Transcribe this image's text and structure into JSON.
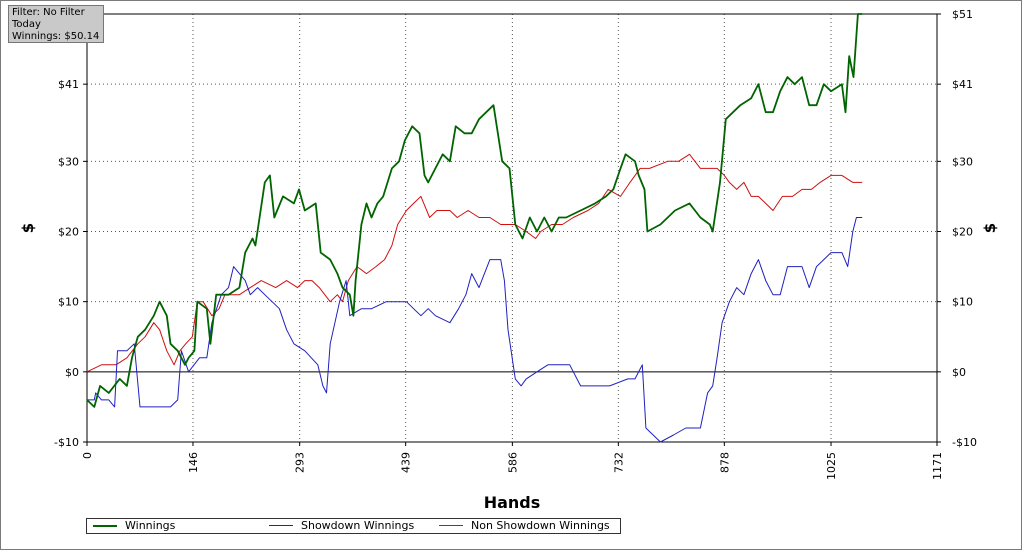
{
  "filter": {
    "line1": "Filter: No Filter",
    "line2": "Today",
    "line3": "Winnings: $50.14"
  },
  "chart_data": {
    "type": "line",
    "xlabel": "Hands",
    "ylabel": "$",
    "ylabel_right": "$",
    "xlim": [
      0,
      1171
    ],
    "ylim": [
      -10,
      51
    ],
    "x_ticks": [
      0,
      146,
      293,
      439,
      586,
      732,
      878,
      1025,
      1171
    ],
    "y_ticks": [
      {
        "value": -10,
        "label": "-$10"
      },
      {
        "value": 0,
        "label": "$0"
      },
      {
        "value": 10,
        "label": "$10"
      },
      {
        "value": 20,
        "label": "$20"
      },
      {
        "value": 30,
        "label": "$30"
      },
      {
        "value": 41,
        "label": "$41"
      },
      {
        "value": 51,
        "label": "$51"
      }
    ],
    "grid": true,
    "legend_position": "bottom-left",
    "series": [
      {
        "name": "Winnings",
        "color": "#006400",
        "points": [
          [
            0,
            -4
          ],
          [
            10,
            -5
          ],
          [
            18,
            -2
          ],
          [
            30,
            -3
          ],
          [
            45,
            -1
          ],
          [
            55,
            -2
          ],
          [
            62,
            2
          ],
          [
            70,
            5
          ],
          [
            80,
            6
          ],
          [
            92,
            8
          ],
          [
            100,
            10
          ],
          [
            110,
            8
          ],
          [
            115,
            4
          ],
          [
            125,
            3
          ],
          [
            135,
            1
          ],
          [
            140,
            2
          ],
          [
            148,
            3
          ],
          [
            152,
            10
          ],
          [
            165,
            9
          ],
          [
            170,
            4
          ],
          [
            178,
            11
          ],
          [
            195,
            11
          ],
          [
            210,
            12
          ],
          [
            218,
            17
          ],
          [
            228,
            19
          ],
          [
            232,
            18
          ],
          [
            245,
            27
          ],
          [
            252,
            28
          ],
          [
            258,
            22
          ],
          [
            270,
            25
          ],
          [
            285,
            24
          ],
          [
            292,
            26
          ],
          [
            300,
            23
          ],
          [
            315,
            24
          ],
          [
            322,
            17
          ],
          [
            335,
            16
          ],
          [
            345,
            14
          ],
          [
            352,
            12
          ],
          [
            362,
            11
          ],
          [
            367,
            8
          ],
          [
            370,
            13
          ],
          [
            378,
            21
          ],
          [
            385,
            24
          ],
          [
            392,
            22
          ],
          [
            400,
            24
          ],
          [
            408,
            25
          ],
          [
            420,
            29
          ],
          [
            430,
            30
          ],
          [
            438,
            33
          ],
          [
            448,
            35
          ],
          [
            458,
            34
          ],
          [
            465,
            28
          ],
          [
            470,
            27
          ],
          [
            480,
            29
          ],
          [
            490,
            31
          ],
          [
            500,
            30
          ],
          [
            508,
            35
          ],
          [
            520,
            34
          ],
          [
            530,
            34
          ],
          [
            540,
            36
          ],
          [
            550,
            37
          ],
          [
            560,
            38
          ],
          [
            572,
            30
          ],
          [
            582,
            29
          ],
          [
            590,
            21
          ],
          [
            600,
            19
          ],
          [
            610,
            22
          ],
          [
            620,
            20
          ],
          [
            630,
            22
          ],
          [
            640,
            20
          ],
          [
            650,
            22
          ],
          [
            660,
            22
          ],
          [
            680,
            23
          ],
          [
            700,
            24
          ],
          [
            715,
            25
          ],
          [
            725,
            26
          ],
          [
            735,
            29
          ],
          [
            742,
            31
          ],
          [
            755,
            30
          ],
          [
            760,
            28
          ],
          [
            768,
            26
          ],
          [
            772,
            20
          ],
          [
            790,
            21
          ],
          [
            810,
            23
          ],
          [
            830,
            24
          ],
          [
            845,
            22
          ],
          [
            858,
            21
          ],
          [
            862,
            20
          ],
          [
            872,
            27
          ],
          [
            880,
            36
          ],
          [
            900,
            38
          ],
          [
            915,
            39
          ],
          [
            925,
            41
          ],
          [
            935,
            37
          ],
          [
            945,
            37
          ],
          [
            955,
            40
          ],
          [
            965,
            42
          ],
          [
            975,
            41
          ],
          [
            985,
            42
          ],
          [
            995,
            38
          ],
          [
            1005,
            38
          ],
          [
            1015,
            41
          ],
          [
            1025,
            40
          ],
          [
            1040,
            41
          ],
          [
            1045,
            37
          ],
          [
            1050,
            45
          ],
          [
            1056,
            42
          ],
          [
            1062,
            51
          ],
          [
            1068,
            51
          ]
        ]
      },
      {
        "name": "Showdown Winnings",
        "color": "#2020c0",
        "points": [
          [
            0,
            -4
          ],
          [
            10,
            -4
          ],
          [
            12,
            -3
          ],
          [
            20,
            -4
          ],
          [
            30,
            -4
          ],
          [
            38,
            -5
          ],
          [
            42,
            3
          ],
          [
            55,
            3
          ],
          [
            65,
            4
          ],
          [
            73,
            -5
          ],
          [
            88,
            -5
          ],
          [
            100,
            -5
          ],
          [
            115,
            -5
          ],
          [
            125,
            -4
          ],
          [
            130,
            3
          ],
          [
            140,
            0
          ],
          [
            155,
            2
          ],
          [
            165,
            2
          ],
          [
            172,
            7
          ],
          [
            185,
            11
          ],
          [
            195,
            12
          ],
          [
            202,
            15
          ],
          [
            218,
            13
          ],
          [
            225,
            11
          ],
          [
            235,
            12
          ],
          [
            245,
            11
          ],
          [
            255,
            10
          ],
          [
            265,
            9
          ],
          [
            275,
            6
          ],
          [
            285,
            4
          ],
          [
            300,
            3
          ],
          [
            318,
            1
          ],
          [
            325,
            -2
          ],
          [
            330,
            -3
          ],
          [
            335,
            4
          ],
          [
            348,
            10
          ],
          [
            357,
            13
          ],
          [
            362,
            8
          ],
          [
            378,
            9
          ],
          [
            392,
            9
          ],
          [
            412,
            10
          ],
          [
            440,
            10
          ],
          [
            450,
            9
          ],
          [
            460,
            8
          ],
          [
            470,
            9
          ],
          [
            480,
            8
          ],
          [
            500,
            7
          ],
          [
            512,
            9
          ],
          [
            522,
            11
          ],
          [
            530,
            14
          ],
          [
            540,
            12
          ],
          [
            555,
            16
          ],
          [
            570,
            16
          ],
          [
            575,
            13
          ],
          [
            580,
            6
          ],
          [
            590,
            -1
          ],
          [
            598,
            -2
          ],
          [
            605,
            -1
          ],
          [
            620,
            0
          ],
          [
            635,
            1
          ],
          [
            650,
            1
          ],
          [
            665,
            1
          ],
          [
            680,
            -2
          ],
          [
            700,
            -2
          ],
          [
            720,
            -2
          ],
          [
            745,
            -1
          ],
          [
            755,
            -1
          ],
          [
            765,
            1
          ],
          [
            770,
            -8
          ],
          [
            790,
            -10
          ],
          [
            808,
            -9
          ],
          [
            825,
            -8
          ],
          [
            845,
            -8
          ],
          [
            855,
            -3
          ],
          [
            862,
            -2
          ],
          [
            868,
            2
          ],
          [
            875,
            7
          ],
          [
            885,
            10
          ],
          [
            895,
            12
          ],
          [
            905,
            11
          ],
          [
            915,
            14
          ],
          [
            925,
            16
          ],
          [
            935,
            13
          ],
          [
            945,
            11
          ],
          [
            955,
            11
          ],
          [
            965,
            15
          ],
          [
            985,
            15
          ],
          [
            995,
            12
          ],
          [
            1005,
            15
          ],
          [
            1015,
            16
          ],
          [
            1025,
            17
          ],
          [
            1040,
            17
          ],
          [
            1048,
            15
          ],
          [
            1055,
            20
          ],
          [
            1060,
            22
          ],
          [
            1068,
            22
          ]
        ]
      },
      {
        "name": "Non Showdown Winnings",
        "color": "#d01010",
        "points": [
          [
            0,
            0
          ],
          [
            20,
            1
          ],
          [
            40,
            1
          ],
          [
            55,
            2
          ],
          [
            70,
            4
          ],
          [
            80,
            5
          ],
          [
            92,
            7
          ],
          [
            100,
            6
          ],
          [
            110,
            3
          ],
          [
            120,
            1
          ],
          [
            128,
            3
          ],
          [
            136,
            4
          ],
          [
            145,
            5
          ],
          [
            152,
            10
          ],
          [
            160,
            10
          ],
          [
            172,
            8
          ],
          [
            182,
            9
          ],
          [
            190,
            11
          ],
          [
            200,
            11
          ],
          [
            210,
            11
          ],
          [
            225,
            12
          ],
          [
            240,
            13
          ],
          [
            260,
            12
          ],
          [
            275,
            13
          ],
          [
            290,
            12
          ],
          [
            300,
            13
          ],
          [
            310,
            13
          ],
          [
            320,
            12
          ],
          [
            335,
            10
          ],
          [
            345,
            11
          ],
          [
            352,
            10
          ],
          [
            360,
            13
          ],
          [
            372,
            15
          ],
          [
            385,
            14
          ],
          [
            398,
            15
          ],
          [
            410,
            16
          ],
          [
            420,
            18
          ],
          [
            428,
            21
          ],
          [
            440,
            23
          ],
          [
            450,
            24
          ],
          [
            460,
            25
          ],
          [
            472,
            22
          ],
          [
            482,
            23
          ],
          [
            500,
            23
          ],
          [
            510,
            22
          ],
          [
            525,
            23
          ],
          [
            540,
            22
          ],
          [
            555,
            22
          ],
          [
            570,
            21
          ],
          [
            590,
            21
          ],
          [
            605,
            20
          ],
          [
            618,
            19
          ],
          [
            625,
            20
          ],
          [
            640,
            21
          ],
          [
            655,
            21
          ],
          [
            670,
            22
          ],
          [
            690,
            23
          ],
          [
            705,
            24
          ],
          [
            718,
            26
          ],
          [
            735,
            25
          ],
          [
            748,
            27
          ],
          [
            762,
            29
          ],
          [
            775,
            29
          ],
          [
            800,
            30
          ],
          [
            815,
            30
          ],
          [
            830,
            31
          ],
          [
            845,
            29
          ],
          [
            855,
            29
          ],
          [
            868,
            29
          ],
          [
            878,
            28
          ],
          [
            885,
            27
          ],
          [
            895,
            26
          ],
          [
            905,
            27
          ],
          [
            915,
            25
          ],
          [
            925,
            25
          ],
          [
            935,
            24
          ],
          [
            945,
            23
          ],
          [
            958,
            25
          ],
          [
            972,
            25
          ],
          [
            985,
            26
          ],
          [
            998,
            26
          ],
          [
            1010,
            27
          ],
          [
            1025,
            28
          ],
          [
            1040,
            28
          ],
          [
            1055,
            27
          ],
          [
            1068,
            27
          ]
        ]
      }
    ]
  }
}
